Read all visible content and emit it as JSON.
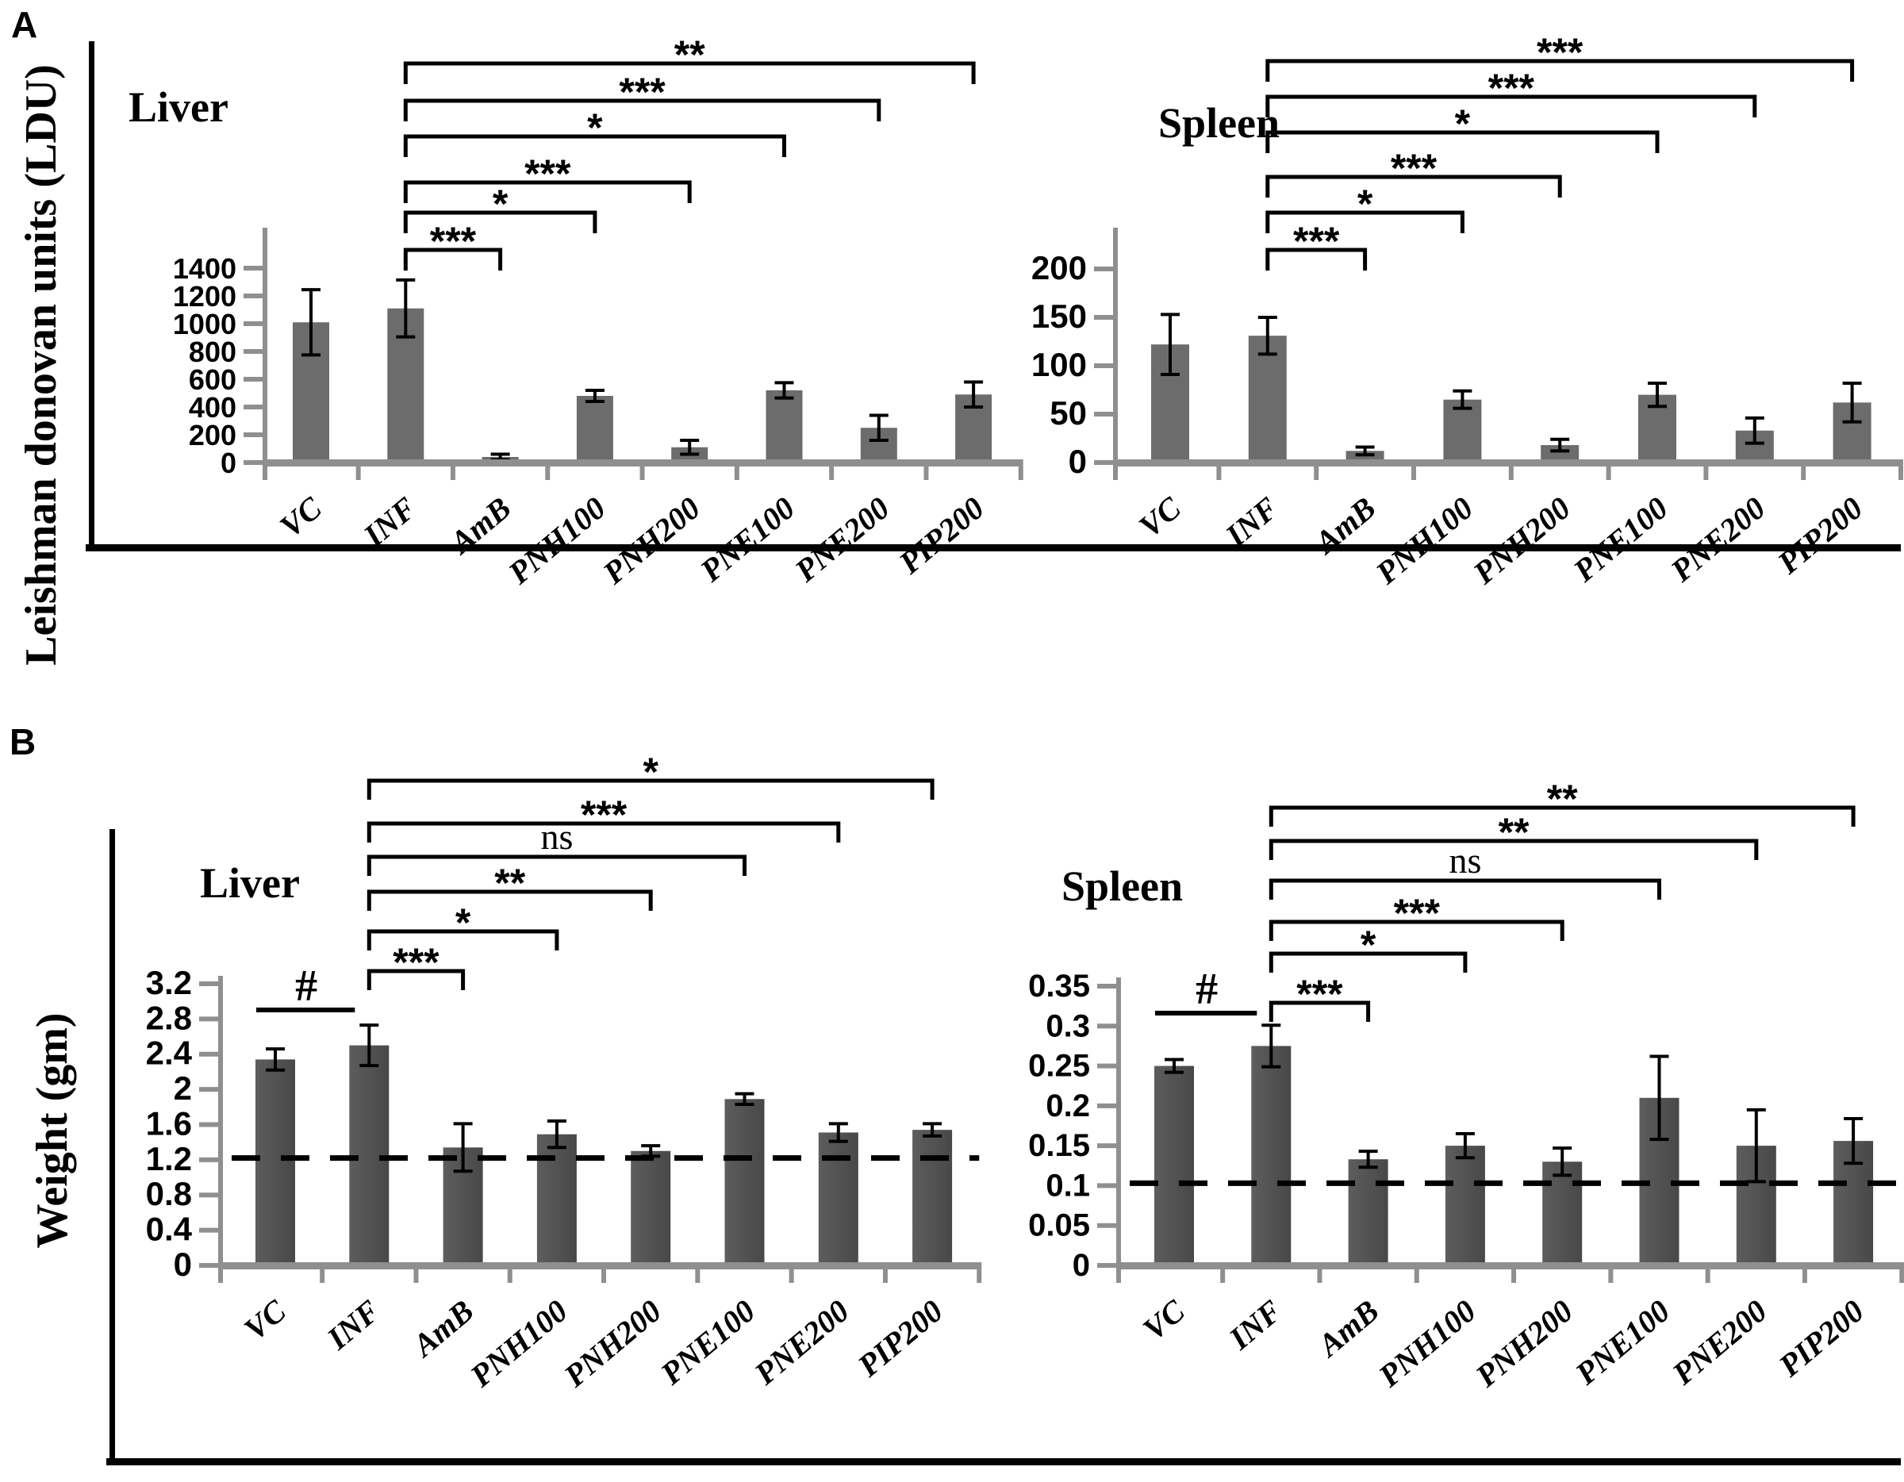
{
  "figure": {
    "panel_a": {
      "label": "A",
      "ylabel": "Leishman donovan units (LDU)"
    },
    "panel_b": {
      "label": "B",
      "ylabel": "Weight (gm)"
    }
  },
  "colors": {
    "bar_panel_a": "#6c6c6c",
    "bar_panel_b_light": "#5d5d5d",
    "bar_panel_b_dark": "#484848",
    "axis_gray": "#8f8f8f",
    "ink": "#000000",
    "background": "#ffffff"
  },
  "chart_data": [
    {
      "id": "a_liver",
      "panel": "A",
      "title": "Liver",
      "type": "bar",
      "ylabel": "Leishman donovan units (LDU)",
      "ylim": [
        0,
        1400
      ],
      "ytick_step": 200,
      "ytick_labels": [
        "0",
        "200",
        "400",
        "600",
        "800",
        "1000",
        "1200",
        "1400"
      ],
      "grid": false,
      "categories": [
        "VC",
        "INF",
        "AmB",
        "PNH100",
        "PNH200",
        "PNE100",
        "PNE200",
        "PIP200"
      ],
      "values": [
        1010,
        1110,
        40,
        480,
        110,
        520,
        250,
        490
      ],
      "errors": [
        235,
        205,
        20,
        40,
        50,
        55,
        90,
        90
      ],
      "dashed_line": null,
      "significance": [
        {
          "from": "INF",
          "to": "AmB",
          "label": "***"
        },
        {
          "from": "INF",
          "to": "PNH100",
          "label": "*"
        },
        {
          "from": "INF",
          "to": "PNH200",
          "label": "***"
        },
        {
          "from": "INF",
          "to": "PNE100",
          "label": "*"
        },
        {
          "from": "INF",
          "to": "PNE200",
          "label": "***"
        },
        {
          "from": "INF",
          "to": "PIP200",
          "label": "**"
        }
      ]
    },
    {
      "id": "a_spleen",
      "panel": "A",
      "title": "Spleen",
      "type": "bar",
      "ylabel": "Leishman donovan units (LDU)",
      "ylim": [
        0,
        200
      ],
      "ytick_step": 50,
      "ytick_labels": [
        "0",
        "50",
        "100",
        "150",
        "200"
      ],
      "grid": false,
      "categories": [
        "VC",
        "INF",
        "AmB",
        "PNH100",
        "PNH200",
        "PNE100",
        "PNE200",
        "PIP200"
      ],
      "values": [
        122,
        131,
        12,
        65,
        18,
        70,
        33,
        62
      ],
      "errors": [
        31,
        19,
        4,
        9,
        6,
        12,
        13,
        20
      ],
      "dashed_line": null,
      "significance": [
        {
          "from": "INF",
          "to": "AmB",
          "label": "***"
        },
        {
          "from": "INF",
          "to": "PNH100",
          "label": "*"
        },
        {
          "from": "INF",
          "to": "PNH200",
          "label": "***"
        },
        {
          "from": "INF",
          "to": "PNE100",
          "label": "*"
        },
        {
          "from": "INF",
          "to": "PNE200",
          "label": "***"
        },
        {
          "from": "INF",
          "to": "PIP200",
          "label": "***"
        }
      ]
    },
    {
      "id": "b_liver",
      "panel": "B",
      "title": "Liver",
      "type": "bar",
      "ylabel": "Weight (gm)",
      "ylim": [
        0,
        3.2
      ],
      "ytick_step": 0.4,
      "ytick_labels": [
        "0",
        "0.4",
        "0.8",
        "1.2",
        "1.6",
        "2",
        "2.4",
        "2.8",
        "3.2"
      ],
      "grid": false,
      "categories": [
        "VC",
        "INF",
        "AmB",
        "PNH100",
        "PNH200",
        "PNE100",
        "PNE200",
        "PIP200"
      ],
      "values": [
        2.34,
        2.5,
        1.34,
        1.49,
        1.3,
        1.89,
        1.51,
        1.54
      ],
      "errors": [
        0.12,
        0.23,
        0.27,
        0.15,
        0.06,
        0.06,
        0.1,
        0.07
      ],
      "dashed_line": 1.22,
      "significance": [
        {
          "from": "VC",
          "to": "INF",
          "label": "#"
        },
        {
          "from": "INF",
          "to": "AmB",
          "label": "***"
        },
        {
          "from": "INF",
          "to": "PNH100",
          "label": "*"
        },
        {
          "from": "INF",
          "to": "PNH200",
          "label": "**"
        },
        {
          "from": "INF",
          "to": "PNE100",
          "label": "ns"
        },
        {
          "from": "INF",
          "to": "PNE200",
          "label": "***"
        },
        {
          "from": "INF",
          "to": "PIP200",
          "label": "*"
        }
      ]
    },
    {
      "id": "b_spleen",
      "panel": "B",
      "title": "Spleen",
      "type": "bar",
      "ylabel": "Weight (gm)",
      "ylim": [
        0,
        0.35
      ],
      "ytick_step": 0.05,
      "ytick_labels": [
        "0",
        "0.05",
        "0.1",
        "0.15",
        "0.2",
        "0.25",
        "0.3",
        "0.35"
      ],
      "grid": false,
      "categories": [
        "VC",
        "INF",
        "AmB",
        "PNH100",
        "PNH200",
        "PNE100",
        "PNE200",
        "PIP200"
      ],
      "values": [
        0.25,
        0.275,
        0.133,
        0.15,
        0.13,
        0.21,
        0.15,
        0.156
      ],
      "errors": [
        0.008,
        0.026,
        0.01,
        0.015,
        0.017,
        0.052,
        0.045,
        0.028
      ],
      "dashed_line": 0.103,
      "significance": [
        {
          "from": "VC",
          "to": "INF",
          "label": "#"
        },
        {
          "from": "INF",
          "to": "AmB",
          "label": "***"
        },
        {
          "from": "INF",
          "to": "PNH100",
          "label": "*"
        },
        {
          "from": "INF",
          "to": "PNH200",
          "label": "***"
        },
        {
          "from": "INF",
          "to": "PNE100",
          "label": "ns"
        },
        {
          "from": "INF",
          "to": "PNE200",
          "label": "**"
        },
        {
          "from": "INF",
          "to": "PIP200",
          "label": "**"
        }
      ]
    }
  ]
}
